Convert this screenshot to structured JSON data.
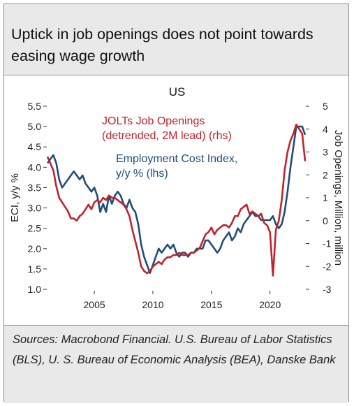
{
  "header": {
    "title": "Uptick in job openings does not point towards easing wage growth"
  },
  "footer": {
    "sources": "Sources: Macrobond Financial. U.S. Bureau of Labor Statistics (BLS), U. S. Bureau of Economic Analysis (BEA), Danske Bank"
  },
  "chart_data": {
    "type": "line",
    "title": "US",
    "xlabel": "",
    "ylabel_left": "ECI, y/y %",
    "ylabel_right": "Job Openings, Million, million",
    "xlim": [
      2001,
      2023
    ],
    "ylim_left": [
      1.0,
      5.5
    ],
    "ylim_right": [
      -3,
      5
    ],
    "x_ticks": [
      2005,
      2010,
      2015,
      2020
    ],
    "y_ticks_left": [
      "1.0",
      "1.5",
      "2.0",
      "2.5",
      "3.0",
      "3.5",
      "4.0",
      "4.5",
      "5.0",
      "5.5"
    ],
    "y_ticks_right": [
      "-3",
      "-2",
      "-1",
      "0",
      "1",
      "2",
      "3",
      "4",
      "5"
    ],
    "grid": false,
    "series": [
      {
        "name": "Employment Cost Index, y/y % (lhs)",
        "label_lines": [
          "Employment Cost Index,",
          "y/y % (lhs)"
        ],
        "axis": "left",
        "color": "#1f4e79",
        "x": [
          2001.0,
          2001.25,
          2001.5,
          2001.75,
          2002.0,
          2002.25,
          2002.5,
          2002.75,
          2003.0,
          2003.25,
          2003.5,
          2003.75,
          2004.0,
          2004.25,
          2004.5,
          2004.75,
          2005.0,
          2005.25,
          2005.5,
          2005.75,
          2006.0,
          2006.25,
          2006.5,
          2006.75,
          2007.0,
          2007.25,
          2007.5,
          2007.75,
          2008.0,
          2008.25,
          2008.5,
          2008.75,
          2009.0,
          2009.25,
          2009.5,
          2009.75,
          2010.0,
          2010.25,
          2010.5,
          2010.75,
          2011.0,
          2011.25,
          2011.5,
          2011.75,
          2012.0,
          2012.25,
          2012.5,
          2012.75,
          2013.0,
          2013.25,
          2013.5,
          2013.75,
          2014.0,
          2014.25,
          2014.5,
          2014.75,
          2015.0,
          2015.25,
          2015.5,
          2015.75,
          2016.0,
          2016.25,
          2016.5,
          2016.75,
          2017.0,
          2017.25,
          2017.5,
          2017.75,
          2018.0,
          2018.25,
          2018.5,
          2018.75,
          2019.0,
          2019.25,
          2019.5,
          2019.75,
          2020.0,
          2020.25,
          2020.5,
          2020.75,
          2021.0,
          2021.25,
          2021.5,
          2021.75,
          2022.0,
          2022.25,
          2022.5,
          2022.75,
          2023.0
        ],
        "values": [
          4.1,
          4.2,
          4.3,
          4.1,
          3.7,
          3.5,
          3.6,
          3.7,
          3.8,
          3.9,
          3.8,
          3.7,
          3.8,
          3.6,
          3.5,
          3.4,
          3.5,
          3.3,
          2.9,
          3.1,
          2.9,
          3.3,
          3.1,
          3.3,
          3.4,
          3.3,
          3.1,
          3.0,
          3.2,
          3.0,
          2.9,
          2.6,
          2.1,
          1.8,
          1.6,
          1.4,
          1.6,
          1.8,
          2.0,
          1.9,
          2.0,
          2.1,
          2.0,
          2.1,
          1.9,
          1.8,
          1.9,
          1.9,
          1.8,
          1.9,
          1.9,
          2.0,
          2.0,
          2.0,
          2.2,
          2.2,
          2.1,
          2.0,
          1.9,
          2.0,
          2.2,
          2.3,
          2.4,
          2.2,
          2.3,
          2.5,
          2.4,
          2.6,
          2.7,
          2.8,
          2.9,
          2.8,
          2.8,
          2.7,
          2.7,
          2.7,
          2.7,
          2.8,
          2.6,
          2.5,
          2.6,
          2.9,
          3.4,
          4.0,
          4.5,
          5.0,
          5.0,
          5.0,
          4.8
        ]
      },
      {
        "name": "JOLTs Job Openings (detrended, 2M lead) (rhs)",
        "label_lines": [
          "JOLTs Job Openings",
          "(detrended, 2M lead) (rhs)"
        ],
        "axis": "right",
        "color": "#c0232c",
        "x": [
          2001.0,
          2001.25,
          2001.5,
          2001.75,
          2002.0,
          2002.25,
          2002.5,
          2002.75,
          2003.0,
          2003.25,
          2003.5,
          2003.75,
          2004.0,
          2004.25,
          2004.5,
          2004.75,
          2005.0,
          2005.25,
          2005.5,
          2005.75,
          2006.0,
          2006.25,
          2006.5,
          2006.75,
          2007.0,
          2007.25,
          2007.5,
          2007.75,
          2008.0,
          2008.25,
          2008.5,
          2008.75,
          2009.0,
          2009.25,
          2009.5,
          2009.75,
          2010.0,
          2010.25,
          2010.5,
          2010.75,
          2011.0,
          2011.25,
          2011.5,
          2011.75,
          2012.0,
          2012.25,
          2012.5,
          2012.75,
          2013.0,
          2013.25,
          2013.5,
          2013.75,
          2014.0,
          2014.25,
          2014.5,
          2014.75,
          2015.0,
          2015.25,
          2015.5,
          2015.75,
          2016.0,
          2016.25,
          2016.5,
          2016.75,
          2017.0,
          2017.25,
          2017.5,
          2017.75,
          2018.0,
          2018.25,
          2018.5,
          2018.75,
          2019.0,
          2019.25,
          2019.5,
          2019.75,
          2020.0,
          2020.25,
          2020.5,
          2020.75,
          2021.0,
          2021.25,
          2021.5,
          2021.75,
          2022.0,
          2022.25,
          2022.5,
          2022.75,
          2023.0
        ],
        "values": [
          2.8,
          2.5,
          2.2,
          1.5,
          1.0,
          0.8,
          0.6,
          0.4,
          0.1,
          0.1,
          0.0,
          0.2,
          0.3,
          0.5,
          0.7,
          0.5,
          0.8,
          0.9,
          0.8,
          1.0,
          0.9,
          1.1,
          1.0,
          1.0,
          0.9,
          0.8,
          0.7,
          0.5,
          0.2,
          -0.4,
          -0.9,
          -1.4,
          -2.0,
          -2.2,
          -2.3,
          -2.2,
          -2.0,
          -1.9,
          -1.8,
          -1.9,
          -1.7,
          -1.6,
          -1.6,
          -1.5,
          -1.5,
          -1.4,
          -1.5,
          -1.5,
          -1.5,
          -1.4,
          -1.4,
          -1.3,
          -1.2,
          -0.9,
          -0.6,
          -0.5,
          -0.3,
          -0.6,
          -0.4,
          -0.3,
          -0.2,
          -0.2,
          -0.3,
          -0.1,
          0.2,
          0.2,
          0.5,
          0.6,
          0.7,
          0.3,
          0.4,
          0.3,
          0.2,
          0.3,
          -0.1,
          -0.2,
          -0.5,
          -2.4,
          -0.4,
          0.0,
          0.9,
          2.2,
          3.0,
          3.5,
          3.8,
          4.2,
          4.0,
          3.8,
          2.6
        ]
      }
    ]
  }
}
